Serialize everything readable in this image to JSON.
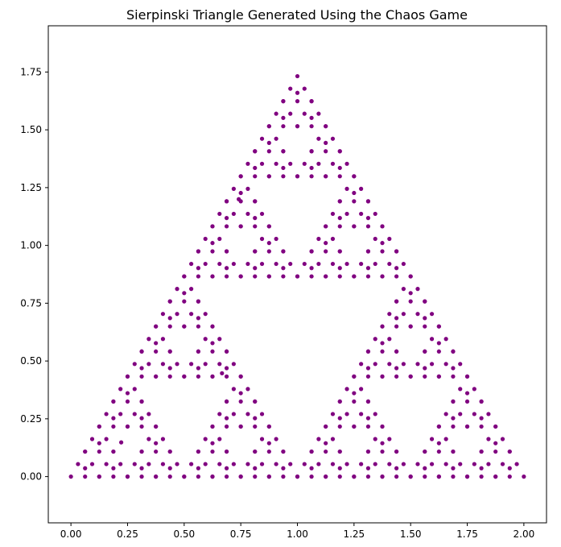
{
  "chart_data": {
    "type": "scatter",
    "title": "Sierpinski Triangle Generated Using the Chaos Game",
    "xlabel": "",
    "ylabel": "",
    "xlim": [
      -0.1,
      2.1
    ],
    "ylim": [
      -0.2,
      1.95
    ],
    "xticks": [
      "0.00",
      "0.25",
      "0.50",
      "0.75",
      "1.00",
      "1.25",
      "1.50",
      "1.75",
      "2.00"
    ],
    "yticks": [
      "0.00",
      "0.25",
      "0.50",
      "0.75",
      "1.00",
      "1.25",
      "1.50",
      "1.75"
    ],
    "grid": false,
    "marker_color": "#800080",
    "vertices": [
      [
        0,
        0
      ],
      [
        2,
        0
      ],
      [
        1,
        1.732
      ]
    ],
    "levels": 4,
    "stray_points": [
      [
        0.222,
        0.148
      ],
      [
        0.667,
        0.447
      ],
      [
        0.741,
        1.2
      ]
    ]
  }
}
